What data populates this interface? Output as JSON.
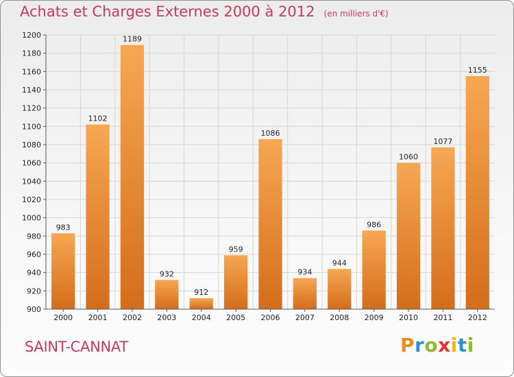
{
  "title": "Achats et Charges Externes 2000 à 2012",
  "unit_label": "(en milliers d'€)",
  "town": "SAINT-CANNAT",
  "logo": {
    "letters": [
      "P",
      "r",
      "o",
      "x",
      "i",
      "t",
      "i"
    ],
    "colors": [
      "#f08a1d",
      "#2f8fd1",
      "#8bbb2e",
      "#e2342b",
      "#f0b21d",
      "#2f8fd1",
      "#8bbb2e"
    ]
  },
  "colors": {
    "title": "#c83a5a",
    "bar_light": "#f7a752",
    "bar_dark": "#d46d1b"
  },
  "chart_data": {
    "type": "bar",
    "title": "Achats et Charges Externes 2000 à 2012",
    "subtitle": "(en milliers d'€)",
    "categories": [
      "2000",
      "2001",
      "2002",
      "2003",
      "2004",
      "2005",
      "2006",
      "2007",
      "2008",
      "2009",
      "2010",
      "2011",
      "2012"
    ],
    "values": [
      983,
      1102,
      1189,
      932,
      912,
      959,
      1086,
      934,
      944,
      986,
      1060,
      1077,
      1155
    ],
    "ylim": [
      900,
      1200
    ],
    "yticks": [
      900,
      920,
      940,
      960,
      980,
      1000,
      1020,
      1040,
      1060,
      1080,
      1100,
      1120,
      1140,
      1160,
      1180,
      1200
    ],
    "grid": true,
    "xlabel": "",
    "ylabel": ""
  }
}
